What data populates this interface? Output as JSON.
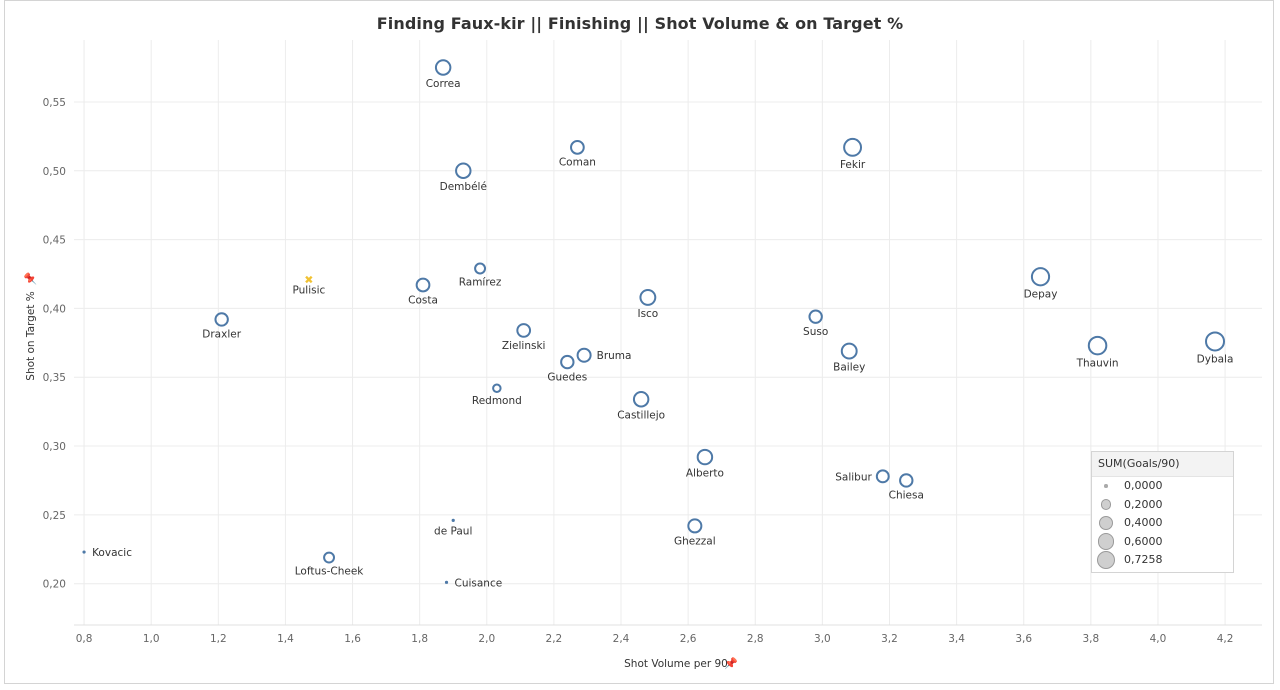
{
  "chart_data": {
    "type": "scatter",
    "title": "Finding Faux-kir  ||  Finishing  ||  Shot Volume & on Target %",
    "xlabel": "Shot Volume per 90",
    "ylabel": "Shot on Target %",
    "xlim": [
      0.77,
      4.31
    ],
    "ylim": [
      0.17,
      0.595
    ],
    "xticks": [
      "0,8",
      "1,0",
      "1,2",
      "1,4",
      "1,6",
      "1,8",
      "2,0",
      "2,2",
      "2,4",
      "2,6",
      "2,8",
      "3,0",
      "3,2",
      "3,4",
      "3,6",
      "3,8",
      "4,0",
      "4,2"
    ],
    "xtick_values": [
      0.8,
      1.0,
      1.2,
      1.4,
      1.6,
      1.8,
      2.0,
      2.2,
      2.4,
      2.6,
      2.8,
      3.0,
      3.2,
      3.4,
      3.6,
      3.8,
      4.0,
      4.2
    ],
    "yticks": [
      "0,20",
      "0,25",
      "0,30",
      "0,35",
      "0,40",
      "0,45",
      "0,50",
      "0,55"
    ],
    "ytick_values": [
      0.2,
      0.25,
      0.3,
      0.35,
      0.4,
      0.45,
      0.5,
      0.55
    ],
    "grid": true,
    "size_measure": "SUM(Goals/90)",
    "colors": {
      "default": "#4e79a7",
      "highlight": "#f1c232"
    },
    "points": [
      {
        "name": "Correa",
        "x": 1.87,
        "y": 0.575,
        "size": 0.42,
        "label_pos": "below"
      },
      {
        "name": "Coman",
        "x": 2.27,
        "y": 0.517,
        "size": 0.3,
        "label_pos": "below"
      },
      {
        "name": "Fekir",
        "x": 3.09,
        "y": 0.517,
        "size": 0.62,
        "label_pos": "below"
      },
      {
        "name": "Dembélé",
        "x": 1.93,
        "y": 0.5,
        "size": 0.42,
        "label_pos": "below"
      },
      {
        "name": "Depay",
        "x": 3.65,
        "y": 0.423,
        "size": 0.65,
        "label_pos": "below"
      },
      {
        "name": "Pulisic",
        "x": 1.47,
        "y": 0.421,
        "size": 0.0,
        "label_pos": "below",
        "highlight": true
      },
      {
        "name": "Ramírez",
        "x": 1.98,
        "y": 0.429,
        "size": 0.15,
        "label_pos": "below"
      },
      {
        "name": "Costa",
        "x": 1.81,
        "y": 0.417,
        "size": 0.3,
        "label_pos": "below"
      },
      {
        "name": "Isco",
        "x": 2.48,
        "y": 0.408,
        "size": 0.45,
        "label_pos": "below"
      },
      {
        "name": "Suso",
        "x": 2.98,
        "y": 0.394,
        "size": 0.28,
        "label_pos": "below"
      },
      {
        "name": "Draxler",
        "x": 1.21,
        "y": 0.392,
        "size": 0.28,
        "label_pos": "below"
      },
      {
        "name": "Zielinski",
        "x": 2.11,
        "y": 0.384,
        "size": 0.3,
        "label_pos": "below"
      },
      {
        "name": "Dybala",
        "x": 4.17,
        "y": 0.376,
        "size": 0.7258,
        "label_pos": "below"
      },
      {
        "name": "Thauvin",
        "x": 3.82,
        "y": 0.373,
        "size": 0.68,
        "label_pos": "below"
      },
      {
        "name": "Bailey",
        "x": 3.08,
        "y": 0.369,
        "size": 0.45,
        "label_pos": "below"
      },
      {
        "name": "Bruma",
        "x": 2.29,
        "y": 0.366,
        "size": 0.32,
        "label_pos": "right"
      },
      {
        "name": "Guedes",
        "x": 2.24,
        "y": 0.361,
        "size": 0.28,
        "label_pos": "below"
      },
      {
        "name": "Redmond",
        "x": 2.03,
        "y": 0.342,
        "size": 0.06,
        "label_pos": "below"
      },
      {
        "name": "Castillejo",
        "x": 2.46,
        "y": 0.334,
        "size": 0.42,
        "label_pos": "below"
      },
      {
        "name": "Alberto",
        "x": 2.65,
        "y": 0.292,
        "size": 0.42,
        "label_pos": "below"
      },
      {
        "name": "Salibur",
        "x": 3.18,
        "y": 0.278,
        "size": 0.25,
        "label_pos": "left"
      },
      {
        "name": "Chiesa",
        "x": 3.25,
        "y": 0.275,
        "size": 0.28,
        "label_pos": "below"
      },
      {
        "name": "de Paul",
        "x": 1.9,
        "y": 0.246,
        "size": 0.0,
        "label_pos": "below"
      },
      {
        "name": "Ghezzal",
        "x": 2.62,
        "y": 0.242,
        "size": 0.32,
        "label_pos": "below"
      },
      {
        "name": "Kovacic",
        "x": 0.8,
        "y": 0.223,
        "size": 0.0,
        "label_pos": "right"
      },
      {
        "name": "Loftus-Cheek",
        "x": 1.53,
        "y": 0.219,
        "size": 0.15,
        "label_pos": "below"
      },
      {
        "name": "Cuisance",
        "x": 1.88,
        "y": 0.201,
        "size": 0.0,
        "label_pos": "right"
      }
    ],
    "legend": {
      "title": "SUM(Goals/90)",
      "placement": "bottom-right",
      "entries": [
        {
          "label": "0,0000",
          "value": 0.0
        },
        {
          "label": "0,2000",
          "value": 0.2
        },
        {
          "label": "0,4000",
          "value": 0.4
        },
        {
          "label": "0,6000",
          "value": 0.6
        },
        {
          "label": "0,7258",
          "value": 0.7258
        }
      ]
    }
  }
}
